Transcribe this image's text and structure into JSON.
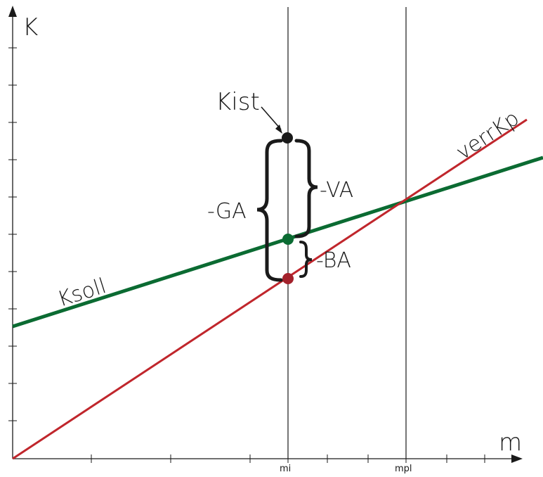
{
  "axes": {
    "y_label": "K",
    "x_label": "m",
    "x_ticks": [
      "mi",
      "mpl"
    ]
  },
  "lines": {
    "ksoll": {
      "label": "Ksoll",
      "color": "#0b6b32"
    },
    "verrkp": {
      "label": "verrKp",
      "color": "#c0262c"
    }
  },
  "points": {
    "kist": {
      "label": "Kist",
      "color": "#1a1a1a"
    },
    "ksoll_at_mi": {
      "color": "#0b6b32"
    },
    "verrkp_at_mi": {
      "color": "#a3212b"
    }
  },
  "braces": {
    "ga": "-GA",
    "va": "-VA",
    "ba": "-BA"
  }
}
